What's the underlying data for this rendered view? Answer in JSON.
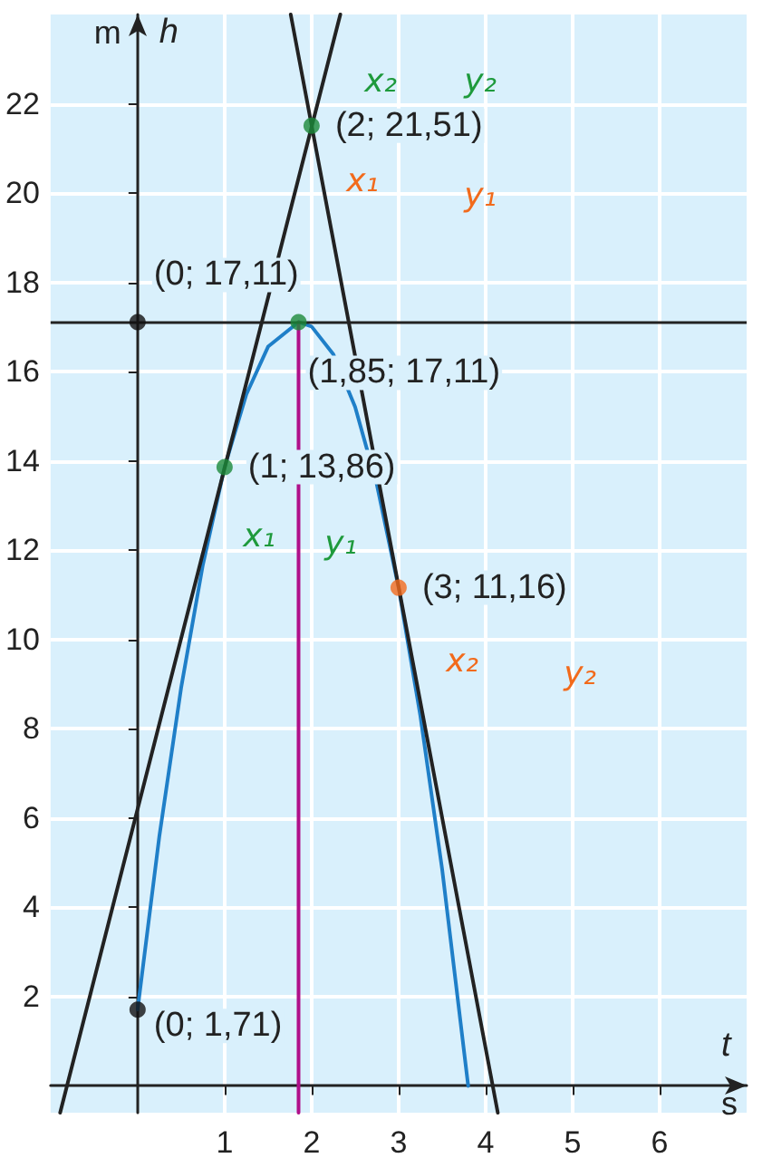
{
  "chart_data": {
    "type": "line",
    "xlabel": "t",
    "ylabel": "h",
    "xlim": [
      -1,
      7
    ],
    "ylim": [
      -0.6,
      24
    ],
    "xticks": [
      1,
      2,
      3,
      4,
      5,
      6
    ],
    "yticks": [
      2,
      4,
      6,
      8,
      10,
      12,
      14,
      16,
      18,
      20,
      22
    ],
    "grid": true,
    "marker": "none",
    "series": [
      {
        "color": "#1f7fc8",
        "x": [
          0,
          0.25,
          0.5,
          0.75,
          1,
          1.25,
          1.5,
          1.85,
          2,
          2.25,
          2.5,
          2.75,
          3,
          3.25,
          3.5,
          3.8
        ],
        "values": [
          1.71,
          5.59,
          8.91,
          11.67,
          13.86,
          15.49,
          16.56,
          17.11,
          17.01,
          16.39,
          15.21,
          13.47,
          11.16,
          8.29,
          4.86,
          0
        ]
      },
      {
        "color": "#222222",
        "x": [
          -0.89,
          2.33
        ],
        "values": [
          -0.6,
          24
        ]
      },
      {
        "color": "#222222",
        "x": [
          1.76,
          4.14
        ],
        "values": [
          24,
          -0.6
        ]
      },
      {
        "color": "#b0108a",
        "x": [
          1.85,
          1.85
        ],
        "values": [
          17.11,
          -0.6
        ]
      },
      {
        "type": "scatter",
        "marker": "circle",
        "x": [
          0,
          0,
          1,
          1.85,
          2,
          3
        ],
        "values": [
          1.71,
          17.11,
          13.86,
          17.11,
          21.51,
          11.16
        ],
        "colors": [
          "#111111",
          "#111111",
          "#1b8a3a",
          "#1b8a3a",
          "#1b8a3a",
          "#f26a1b"
        ]
      }
    ],
    "ref_lines": [
      {
        "axis": "y",
        "value": 17.11,
        "color": "#222222"
      }
    ],
    "annotations": [
      {
        "text": "(2; 21,51)",
        "x": 2,
        "y": 21.51
      },
      {
        "text": "(0; 17,11)",
        "x": 0,
        "y": 17.11
      },
      {
        "text": "(1,85; 17,11)",
        "x": 1.85,
        "y": 17.11
      },
      {
        "text": "(1; 13,86)",
        "x": 1,
        "y": 13.86
      },
      {
        "text": "(3; 11,16)",
        "x": 3,
        "y": 11.16
      },
      {
        "text": "(0; 1,71)",
        "x": 0,
        "y": 1.71
      },
      "x₂",
      "y₂",
      "x₁",
      "y₁",
      "x₁",
      "y₁",
      "x₂",
      "y₂",
      "m",
      "s"
    ]
  }
}
